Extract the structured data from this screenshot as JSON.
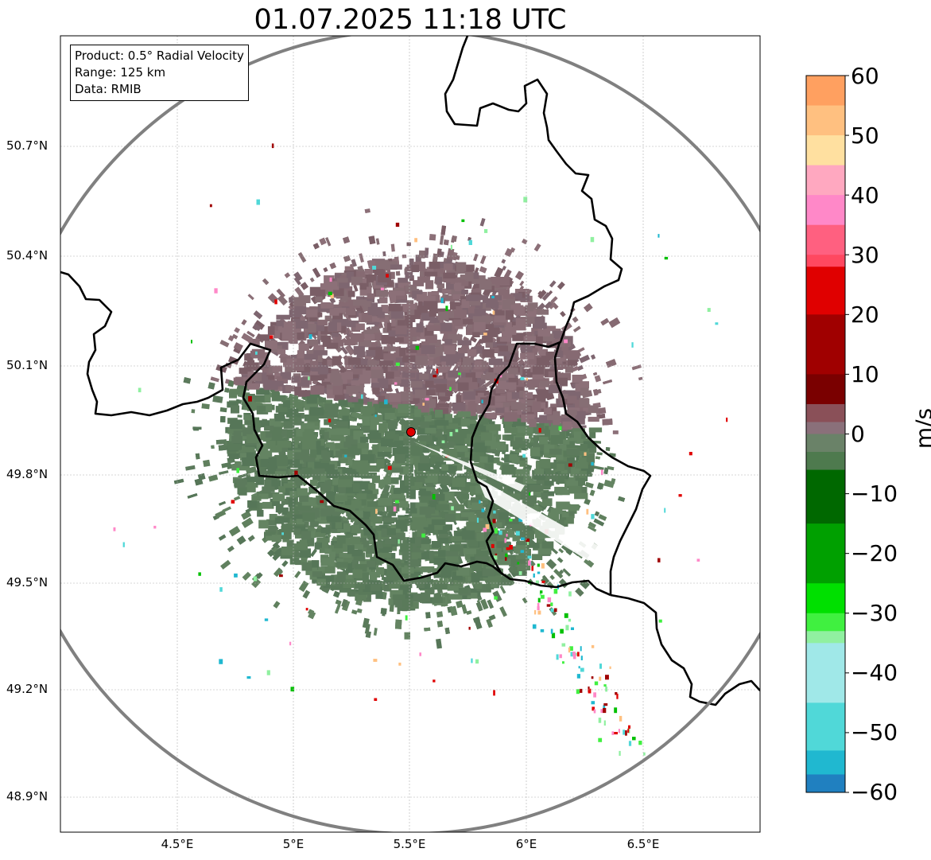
{
  "title": "01.07.2025 11:18 UTC",
  "info": {
    "product": "Product: 0.5° Radial Velocity",
    "range": "Range: 125 km",
    "data_source": "Data: RMIB"
  },
  "map": {
    "lat_ticks": [
      "50.7°N",
      "50.4°N",
      "50.1°N",
      "49.8°N",
      "49.5°N",
      "49.2°N",
      "48.9°N"
    ],
    "lon_ticks": [
      "4.5°E",
      "5°E",
      "5.5°E",
      "6°E",
      "6.5°E"
    ],
    "radar_site": {
      "lon": 5.505,
      "lat": 49.914
    },
    "range_ring_km": 125,
    "colors": {
      "approaching": "#5a7a5a",
      "receding": "#866a72",
      "border": "#000000",
      "range_ring": "#808080",
      "site": "#e00000"
    }
  },
  "colorbar": {
    "unit": "m/s",
    "ticks": [
      "60",
      "50",
      "40",
      "30",
      "20",
      "10",
      "0",
      "−10",
      "−20",
      "−30",
      "−40",
      "−50",
      "−60"
    ],
    "min": -60,
    "max": 60,
    "stops": [
      {
        "from": 55,
        "to": 60,
        "color": "#ffa060"
      },
      {
        "from": 50,
        "to": 55,
        "color": "#ffc080"
      },
      {
        "from": 45,
        "to": 50,
        "color": "#ffe0a0"
      },
      {
        "from": 40,
        "to": 45,
        "color": "#ffa8c0"
      },
      {
        "from": 35,
        "to": 40,
        "color": "#ff88c8"
      },
      {
        "from": 30,
        "to": 35,
        "color": "#ff6080"
      },
      {
        "from": 28,
        "to": 30,
        "color": "#ff4860"
      },
      {
        "from": 20,
        "to": 28,
        "color": "#e00000"
      },
      {
        "from": 10,
        "to": 20,
        "color": "#a00000"
      },
      {
        "from": 5,
        "to": 10,
        "color": "#7a0000"
      },
      {
        "from": 2,
        "to": 5,
        "color": "#8a5058"
      },
      {
        "from": 0,
        "to": 2,
        "color": "#8a707a"
      },
      {
        "from": -3,
        "to": 0,
        "color": "#6a8268"
      },
      {
        "from": -6,
        "to": -3,
        "color": "#4e7a4e"
      },
      {
        "from": -15,
        "to": -6,
        "color": "#006800"
      },
      {
        "from": -25,
        "to": -15,
        "color": "#00a000"
      },
      {
        "from": -30,
        "to": -25,
        "color": "#00e000"
      },
      {
        "from": -33,
        "to": -30,
        "color": "#40f040"
      },
      {
        "from": -35,
        "to": -33,
        "color": "#90f0a0"
      },
      {
        "from": -45,
        "to": -35,
        "color": "#a0e8e8"
      },
      {
        "from": -53,
        "to": -45,
        "color": "#50d8d8"
      },
      {
        "from": -57,
        "to": -53,
        "color": "#20b8d0"
      },
      {
        "from": -60,
        "to": -57,
        "color": "#2080c0"
      }
    ]
  }
}
